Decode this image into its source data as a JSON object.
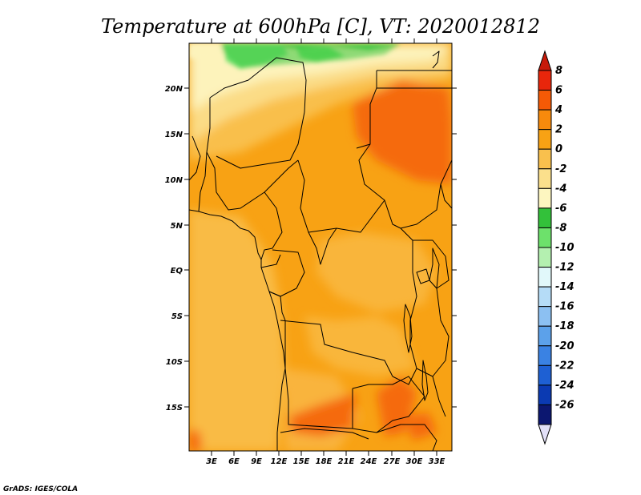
{
  "title": "Temperature at 600hPa [C], VT: 2020012812",
  "credit": "GrADS: IGES/COLA",
  "map": {
    "variable": "Temperature at 600hPa",
    "units": "C",
    "valid_time": "2020012812",
    "lat_labels": [
      "20N",
      "15N",
      "10N",
      "5N",
      "EQ",
      "5S",
      "10S",
      "15S"
    ],
    "lon_labels": [
      "3E",
      "6E",
      "9E",
      "12E",
      "15E",
      "18E",
      "21E",
      "24E",
      "27E",
      "30E",
      "33E"
    ]
  },
  "colorbar": {
    "labels": [
      "8",
      "6",
      "4",
      "2",
      "0",
      "-2",
      "-4",
      "-6",
      "-8",
      "-10",
      "-12",
      "-14",
      "-16",
      "-18",
      "-20",
      "-22",
      "-24",
      "-26"
    ],
    "colors": [
      "#e8260b",
      "#f45a06",
      "#f78a0c",
      "#f8a214",
      "#f9c04d",
      "#fbe08c",
      "#fdf6c0",
      "#33c13a",
      "#6de16b",
      "#b4f0b0",
      "#e1f8fa",
      "#b5dcf7",
      "#8cc0f2",
      "#5ca1ea",
      "#3a82e3",
      "#1e60d3",
      "#0b3ab2",
      "#0c1770"
    ],
    "top_arrow_color": "#c71a0a",
    "bottom_arrow_color": "#e2e0f8"
  }
}
